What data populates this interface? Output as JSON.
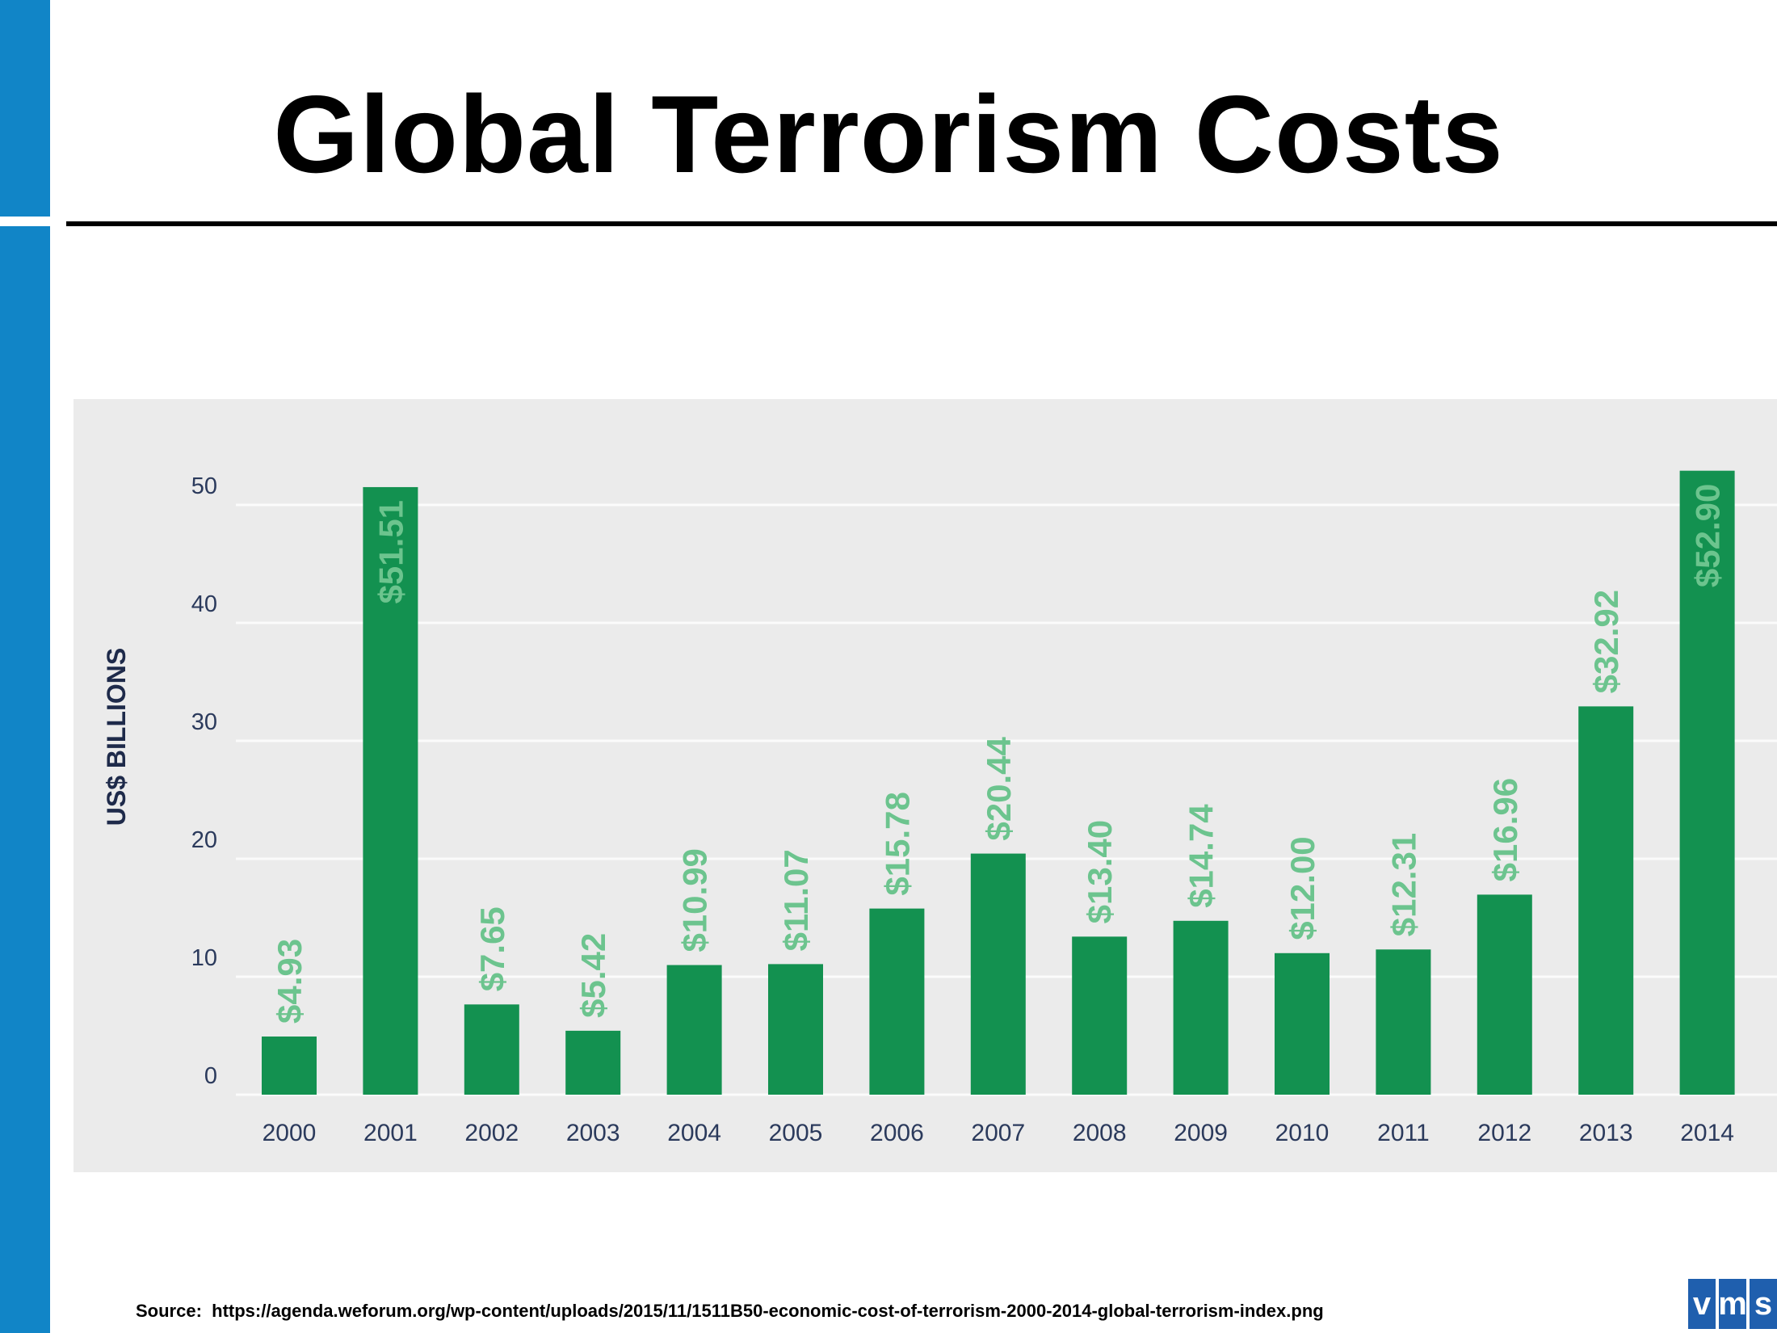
{
  "slide": {
    "title": "Global Terrorism Costs",
    "source_label": "Source:",
    "source_url": "https://agenda.weforum.org/wp-content/uploads/2015/11/1511B50-economic-cost-of-terrorism-2000-2014-global-terrorism-index.png",
    "logo": "vms",
    "logo_letters": [
      "v",
      "m",
      "s"
    ]
  },
  "colors": {
    "accent_blue": "#1185c7",
    "bar": "#139150",
    "label": "#6cc48e",
    "axis_text": "#2b3a5c",
    "panel": "#ebebeb"
  },
  "chart_data": {
    "type": "bar",
    "title": "",
    "xlabel": "",
    "ylabel": "US$ BILLIONS",
    "ylim": [
      0,
      55
    ],
    "yticks": [
      0,
      10,
      20,
      30,
      40,
      50
    ],
    "grid": true,
    "categories": [
      "2000",
      "2001",
      "2002",
      "2003",
      "2004",
      "2005",
      "2006",
      "2007",
      "2008",
      "2009",
      "2010",
      "2011",
      "2012",
      "2013",
      "2014"
    ],
    "values": [
      4.93,
      51.51,
      7.65,
      5.42,
      10.99,
      11.07,
      15.78,
      20.44,
      13.4,
      14.74,
      12.0,
      12.31,
      16.96,
      32.92,
      52.9
    ],
    "data_labels": [
      "$4.93",
      "$51.51",
      "$7.65",
      "$5.42",
      "$10.99",
      "$11.07",
      "$15.78",
      "$20.44",
      "$13.40",
      "$14.74",
      "$12.00",
      "$12.31",
      "$16.96",
      "$32.92",
      "$52.90"
    ]
  }
}
